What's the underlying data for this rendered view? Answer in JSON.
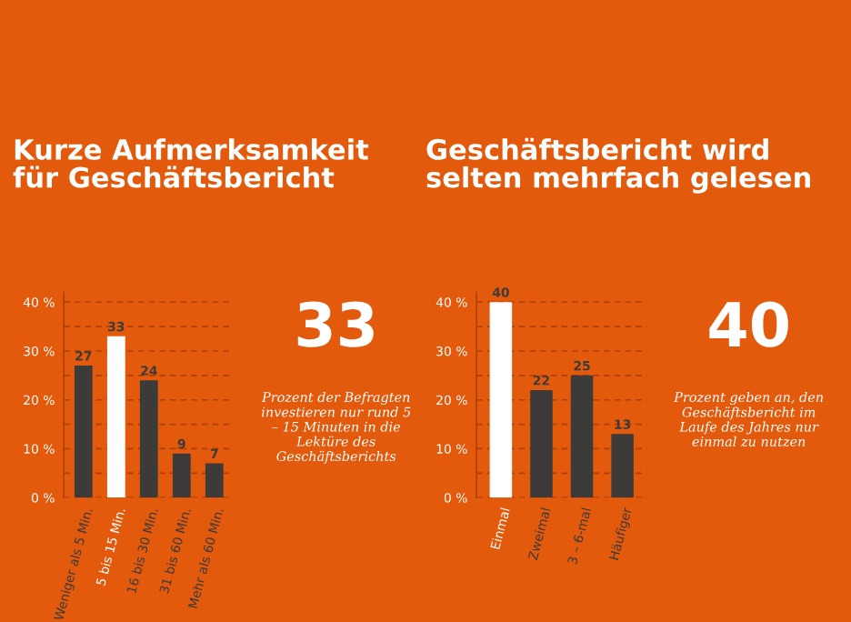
{
  "chart_data": [
    {
      "type": "bar",
      "title": "Kurze Aufmerksamkeit\nfür Geschäftsbericht",
      "categories": [
        "Weniger als 5 Min.",
        "5 bis 15 Min.",
        "16 bis 30 Min.",
        "31 bis 60 Min.",
        "Mehr als 60 Min."
      ],
      "values": [
        27,
        33,
        24,
        9,
        7
      ],
      "colors": [
        "#3d3b3a",
        "#ffffff",
        "#3d3b3a",
        "#3d3b3a",
        "#3d3b3a"
      ],
      "data_labels": true,
      "ylim": [
        0,
        42
      ],
      "yticks": [
        {
          "value": 0,
          "label": "0 %"
        },
        {
          "value": 5,
          "label": null
        },
        {
          "value": 10,
          "label": "10 %"
        },
        {
          "value": 15,
          "label": null
        },
        {
          "value": 20,
          "label": "20 %"
        },
        {
          "value": 25,
          "label": null
        },
        {
          "value": 30,
          "label": "30 %"
        },
        {
          "value": 35,
          "label": null
        },
        {
          "value": 40,
          "label": "40 %"
        }
      ],
      "grid": "y",
      "annotations": [
        "33",
        "Prozent der Befragten investieren nur rund 5 – 15 Minuten in die Lektüre des Geschäftsberichts"
      ]
    },
    {
      "type": "bar",
      "title": "Geschäftsbericht wird\nselten mehrfach gelesen",
      "categories": [
        "Einmal",
        "Zweimal",
        "3 – 6-mal",
        "Häufiger"
      ],
      "values": [
        40,
        22,
        25,
        13
      ],
      "colors": [
        "#ffffff",
        "#3d3b3a",
        "#3d3b3a",
        "#3d3b3a"
      ],
      "data_labels": true,
      "ylim": [
        0,
        42
      ],
      "yticks": [
        {
          "value": 0,
          "label": "0 %"
        },
        {
          "value": 5,
          "label": null
        },
        {
          "value": 10,
          "label": "10 %"
        },
        {
          "value": 15,
          "label": null
        },
        {
          "value": 20,
          "label": "20 %"
        },
        {
          "value": 25,
          "label": null
        },
        {
          "value": 30,
          "label": "30 %"
        },
        {
          "value": 35,
          "label": null
        },
        {
          "value": 40,
          "label": "40 %"
        }
      ],
      "grid": "y",
      "annotations": [
        "40",
        "Prozent geben an, den Geschäftsbericht im Laufe des Jahres nur einmal zu nutzen"
      ]
    }
  ]
}
